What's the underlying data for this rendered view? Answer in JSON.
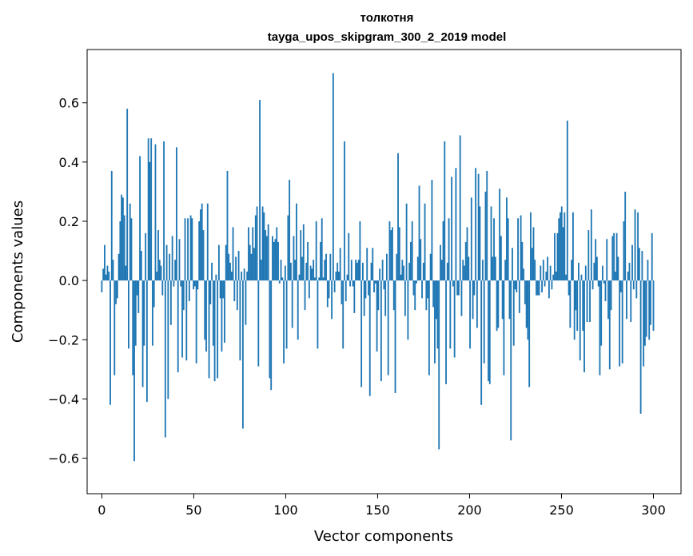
{
  "chart_data": {
    "type": "bar",
    "title": "толкотня",
    "subtitle": "tayga_upos_skipgram_300_2_2019 model",
    "xlabel": "Vector components",
    "ylabel": "Components values",
    "xlim": [
      -8,
      315
    ],
    "ylim": [
      -0.72,
      0.78
    ],
    "xticks": [
      0,
      50,
      100,
      150,
      200,
      250,
      300
    ],
    "yticks": [
      -0.6,
      -0.4,
      -0.2,
      0.0,
      0.2,
      0.4,
      0.6
    ],
    "ytick_labels": [
      "−0.6",
      "−0.4",
      "−0.2",
      "0.0",
      "0.2",
      "0.4",
      "0.6"
    ],
    "grid": false,
    "bar_color": "#1f77b4",
    "values": [
      -0.04,
      0.04,
      0.12,
      0.02,
      0.05,
      0.03,
      -0.42,
      0.37,
      0.07,
      -0.32,
      -0.08,
      -0.06,
      0.09,
      0.2,
      0.29,
      0.28,
      0.22,
      0.05,
      0.58,
      -0.23,
      0.26,
      0.21,
      -0.32,
      -0.61,
      -0.22,
      -0.05,
      -0.11,
      0.42,
      0.1,
      -0.36,
      -0.22,
      0.16,
      -0.41,
      0.48,
      0.4,
      0.48,
      -0.22,
      -0.09,
      0.46,
      0.03,
      0.17,
      0.07,
      0.05,
      -0.05,
      0.47,
      -0.53,
      0.12,
      -0.4,
      0.09,
      -0.15,
      0.15,
      -0.02,
      0.07,
      0.45,
      -0.31,
      0.14,
      -0.02,
      -0.26,
      -0.1,
      0.21,
      -0.27,
      0.21,
      -0.07,
      0.22,
      0.21,
      -0.03,
      -0.02,
      -0.28,
      -0.03,
      0.2,
      0.24,
      0.26,
      0.17,
      -0.2,
      -0.24,
      0.26,
      -0.33,
      -0.08,
      0.06,
      -0.22,
      -0.34,
      0.02,
      -0.33,
      0.12,
      -0.06,
      -0.24,
      -0.06,
      -0.21,
      0.12,
      0.37,
      0.09,
      0.06,
      0.03,
      0.18,
      -0.07,
      0.08,
      -0.1,
      0.1,
      -0.27,
      0.03,
      -0.5,
      0.04,
      -0.15,
      0.03,
      0.18,
      0.12,
      0.09,
      0.18,
      0.11,
      0.22,
      0.25,
      -0.29,
      0.61,
      0.07,
      0.25,
      0.23,
      0.17,
      0.15,
      0.19,
      -0.33,
      -0.37,
      0.15,
      0.13,
      0.14,
      0.18,
      0.13,
      -0.01,
      0.07,
      0.01,
      -0.28,
      0.05,
      -0.23,
      0.22,
      0.34,
      0.06,
      -0.16,
      0.15,
      0.07,
      0.26,
      -0.2,
      0.02,
      0.17,
      0.08,
      0.19,
      -0.1,
      0.06,
      0.13,
      -0.06,
      0.05,
      0.04,
      0.07,
      0.01,
      0.2,
      -0.23,
      0.01,
      0.13,
      0.21,
      0.01,
      0.07,
      0.09,
      -0.09,
      -0.06,
      0.09,
      -0.13,
      0.7,
      -0.04,
      0.03,
      0.06,
      0.03,
      0.11,
      -0.08,
      -0.23,
      0.47,
      -0.07,
      0.02,
      0.16,
      -0.02,
      0.07,
      -0.02,
      -0.11,
      0.07,
      0.06,
      0.07,
      0.2,
      -0.36,
      0.06,
      -0.12,
      -0.06,
      0.11,
      -0.05,
      -0.39,
      0.06,
      0.11,
      -0.04,
      -0.01,
      -0.24,
      -0.1,
      0.04,
      -0.34,
      0.07,
      -0.03,
      -0.12,
      0.09,
      -0.32,
      0.2,
      0.17,
      0.18,
      -0.1,
      -0.38,
      0.09,
      0.43,
      0.18,
      0.02,
      0.07,
      0.05,
      -0.12,
      0.26,
      -0.2,
      0.06,
      0.13,
      0.2,
      -0.05,
      -0.1,
      -0.01,
      0.08,
      0.32,
      0.14,
      -0.06,
      0.06,
      0.26,
      -0.1,
      -0.06,
      -0.32,
      0.09,
      0.34,
      -0.09,
      -0.28,
      -0.13,
      -0.23,
      -0.57,
      0.12,
      0.07,
      0.2,
      0.47,
      -0.35,
      0.06,
      0.21,
      -0.23,
      0.35,
      -0.02,
      -0.26,
      0.38,
      -0.05,
      -0.05,
      0.49,
      -0.12,
      0.07,
      0.05,
      0.13,
      0.18,
      0.08,
      -0.23,
      0.28,
      -0.13,
      -0.05,
      0.38,
      -0.16,
      0.36,
      0.25,
      -0.42,
      0.07,
      -0.28,
      0.3,
      0.37,
      -0.34,
      -0.35,
      0.25,
      0.08,
      0.21,
      0.08,
      -0.17,
      -0.16,
      0.31,
      0.15,
      -0.13,
      -0.32,
      0.07,
      0.28,
      0.21,
      -0.13,
      -0.54,
      0.11,
      -0.22,
      -0.03,
      -0.04,
      0.21,
      -0.11,
      0.22,
      0.13,
      0.04,
      -0.08,
      -0.16,
      -0.2,
      -0.36,
      0.23,
      0.11,
      0.18,
      0.07,
      -0.05,
      -0.05,
      -0.05,
      0.05,
      -0.04,
      0.07,
      -0.02,
      0.03,
      0.08,
      -0.06,
      0.05,
      -0.03,
      0.02,
      0.16,
      0.03,
      0.16,
      0.21,
      0.23,
      0.25,
      0.18,
      0.23,
      0.02,
      0.54,
      -0.05,
      -0.16,
      0.07,
      0.23,
      -0.2,
      -0.1,
      -0.17,
      0.06,
      -0.27,
      0.02,
      -0.17,
      -0.31,
      0.05,
      -0.14,
      0.17,
      -0.14,
      0.24,
      -0.03,
      0.06,
      0.14,
      0.08,
      -0.02,
      -0.32,
      -0.22,
      0.05,
      -0.01,
      -0.07,
      0.14,
      -0.13,
      -0.3,
      -0.1,
      0.15,
      0.16,
      0.03,
      0.16,
      0.08,
      -0.29,
      -0.04,
      -0.28,
      0.2,
      0.3,
      -0.13,
      0.03,
      0.06,
      -0.14,
      0.12,
      -0.03,
      0.24,
      -0.06,
      0.23,
      0.11,
      -0.45,
      0.1,
      -0.29,
      -0.22,
      -0.19,
      0.07,
      -0.2,
      -0.15,
      0.16,
      -0.17
    ]
  }
}
